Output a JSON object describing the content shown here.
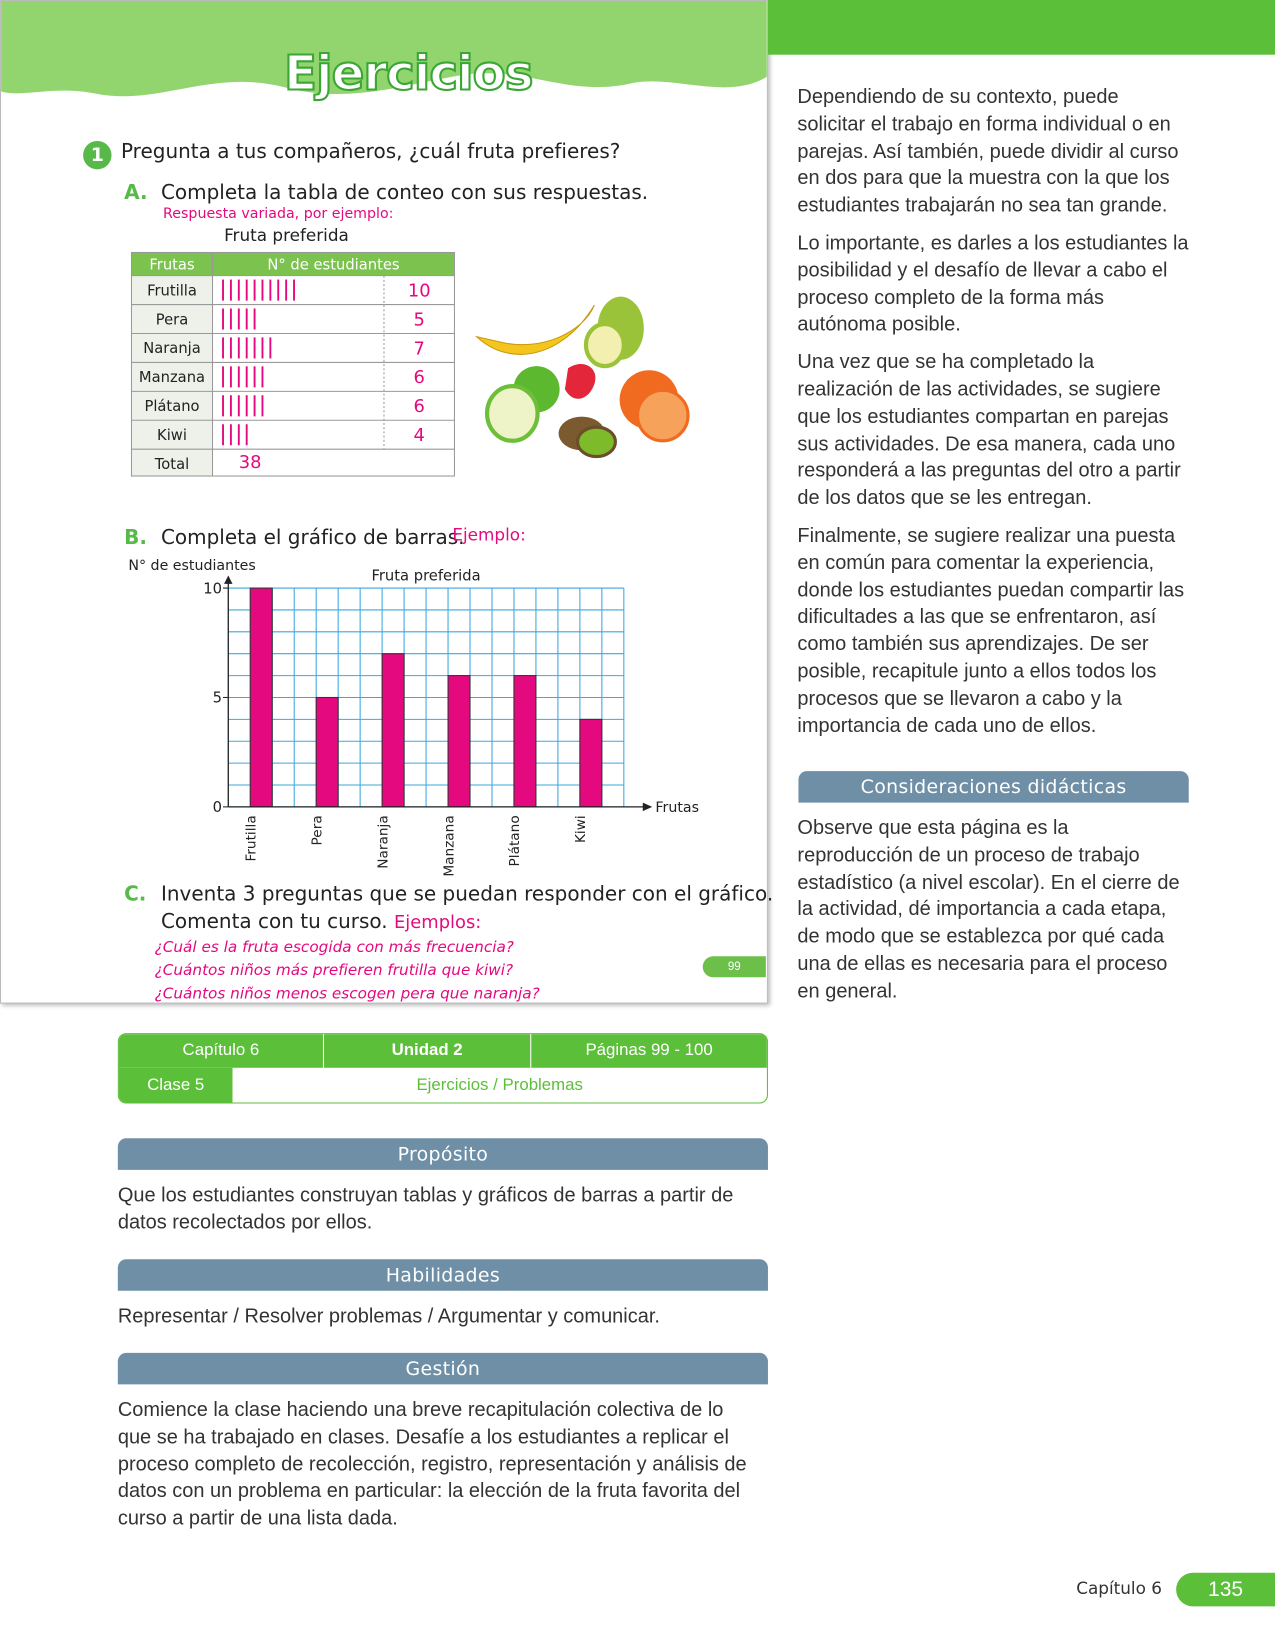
{
  "worksheet": {
    "title": "Ejercicios",
    "exercise_number": "1",
    "question": "Pregunta a tus compañeros, ¿cuál fruta prefieres?",
    "part_a": {
      "letter": "A.",
      "instruction": "Completa la tabla de conteo con sus respuestas.",
      "note": "Respuesta variada, por ejemplo:",
      "table_title": "Fruta preferida",
      "headers": [
        "Frutas",
        "N° de estudiantes"
      ],
      "rows": [
        {
          "fruit": "Frutilla",
          "count": 10
        },
        {
          "fruit": "Pera",
          "count": 5
        },
        {
          "fruit": "Naranja",
          "count": 7
        },
        {
          "fruit": "Manzana",
          "count": 6
        },
        {
          "fruit": "Plátano",
          "count": 6
        },
        {
          "fruit": "Kiwi",
          "count": 4
        }
      ],
      "total_label": "Total",
      "total": 38
    },
    "part_b": {
      "letter": "B.",
      "instruction": "Completa el gráfico de barras.",
      "note": "Ejemplo:"
    },
    "part_c": {
      "letter": "C.",
      "instruction": "Inventa 3 preguntas que se puedan responder con el gráfico.",
      "instruction_2": "Comenta con tu curso.",
      "note": "Ejemplos:",
      "examples": [
        "¿Cuál es la fruta escogida con más frecuencia?",
        "¿Cuántos niños más prefieren frutilla que kiwi?",
        "¿Cuántos niños menos escogen pera que naranja?"
      ]
    },
    "page_number": "99"
  },
  "chart_data": {
    "type": "bar",
    "title": "Fruta preferida",
    "y_label": "N° de estudiantes",
    "x_label": "Frutas",
    "categories": [
      "Frutilla",
      "Pera",
      "Naranja",
      "Manzana",
      "Plátano",
      "Kiwi"
    ],
    "values": [
      10,
      5,
      7,
      6,
      6,
      4
    ],
    "color": "#e4097f",
    "ylim": [
      0,
      10
    ],
    "yticks": [
      0,
      5,
      10
    ],
    "grid": true
  },
  "guide": {
    "info_table": {
      "chapter": "Capítulo 6",
      "unit": "Unidad 2",
      "pages": "Páginas 99 - 100",
      "class": "Clase 5",
      "topic": "Ejercicios / Problemas"
    },
    "sections": [
      {
        "heading": "Propósito",
        "text": "Que los estudiantes construyan tablas y gráficos de barras a partir de datos recolectados por ellos."
      },
      {
        "heading": "Habilidades",
        "text": "Representar / Resolver problemas / Argumentar y comunicar."
      },
      {
        "heading": "Gestión",
        "text": "Comience la clase haciendo una breve recapitulación colectiva de lo que se ha trabajado en clases. Desafíe a los estudiantes a replicar el proceso completo de recolección, registro, representación y análisis de datos con un problema en particular: la elección de la fruta favorita del curso a partir de una lista dada."
      }
    ],
    "side_paragraphs": [
      "Dependiendo de su contexto, puede solicitar el trabajo en forma individual o en parejas. Así también, puede dividir al curso en dos para que la muestra con la que los estudiantes trabajarán no sea tan grande.",
      "Lo importante, es darles a los estudiantes la posibilidad y el desafío de llevar a cabo el proceso completo de la forma más autónoma posible.",
      "Una vez que se ha completado la realización de las actividades, se sugiere que los estudiantes compartan en parejas sus actividades. De esa manera, cada uno responderá a las preguntas del otro a partir de los datos que se les entregan.",
      "Finalmente, se sugiere realizar una puesta en común para comentar la experiencia, donde los estudiantes puedan compartir las dificultades a las que se enfrentaron, así como también sus aprendizajes. De ser posible, recapitule junto a ellos todos los procesos que se llevaron a cabo y la importancia de cada uno de ellos."
    ],
    "considerations": {
      "heading": "Consideraciones didácticas",
      "text": "Observe que esta página es la reproducción de un proceso de trabajo estadístico (a nivel escolar). En el cierre de la actividad, dé importancia a cada etapa, de modo que se establezca por qué cada una de ellas es necesaria para el proceso en general."
    }
  },
  "footer": {
    "chapter": "Capítulo 6",
    "page": "135"
  }
}
